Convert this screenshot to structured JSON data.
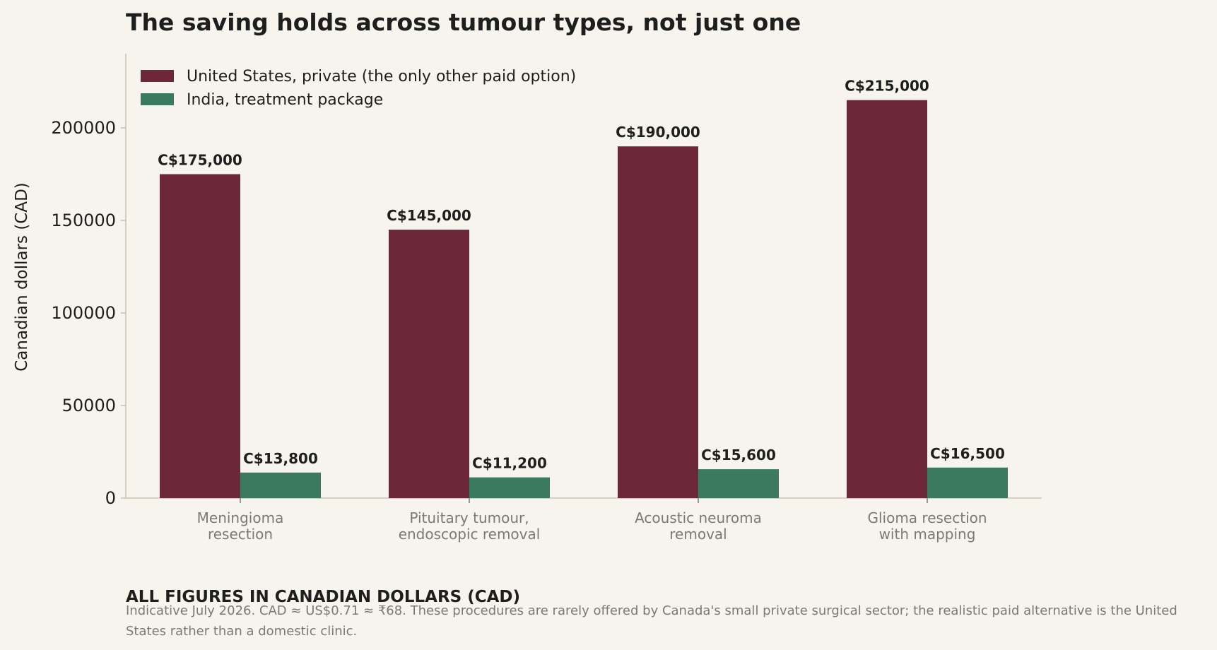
{
  "chart_data": {
    "type": "bar",
    "title": "The saving holds across tumour types, not just one",
    "ylabel": "Canadian dollars (CAD)",
    "xlabel": "",
    "ylim": [
      0,
      240000
    ],
    "yticks": [
      0,
      50000,
      100000,
      150000,
      200000
    ],
    "categories": [
      [
        "Meningioma",
        "resection"
      ],
      [
        "Pituitary tumour,",
        "endoscopic removal"
      ],
      [
        "Acoustic neuroma",
        "removal"
      ],
      [
        "Glioma resection",
        "with mapping"
      ]
    ],
    "series": [
      {
        "name": "United States, private (the only other paid option)",
        "color": "#6c2739",
        "values": [
          175000,
          145000,
          190000,
          215000
        ],
        "labels": [
          "C$175,000",
          "C$145,000",
          "C$190,000",
          "C$215,000"
        ]
      },
      {
        "name": "India, treatment package",
        "color": "#3c7a5f",
        "values": [
          13800,
          11200,
          15600,
          16500
        ],
        "labels": [
          "C$13,800",
          "C$11,200",
          "C$15,600",
          "C$16,500"
        ]
      }
    ],
    "legend_position": "top-left",
    "grid": false
  },
  "footer": {
    "heading": "ALL FIGURES IN CANADIAN DOLLARS (CAD)",
    "note": "Indicative July 2026. CAD ≈ US$0.71 ≈ ₹68. These procedures are rarely offered by Canada's small private surgical sector; the realistic paid alternative is the United States rather than a domestic clinic."
  }
}
